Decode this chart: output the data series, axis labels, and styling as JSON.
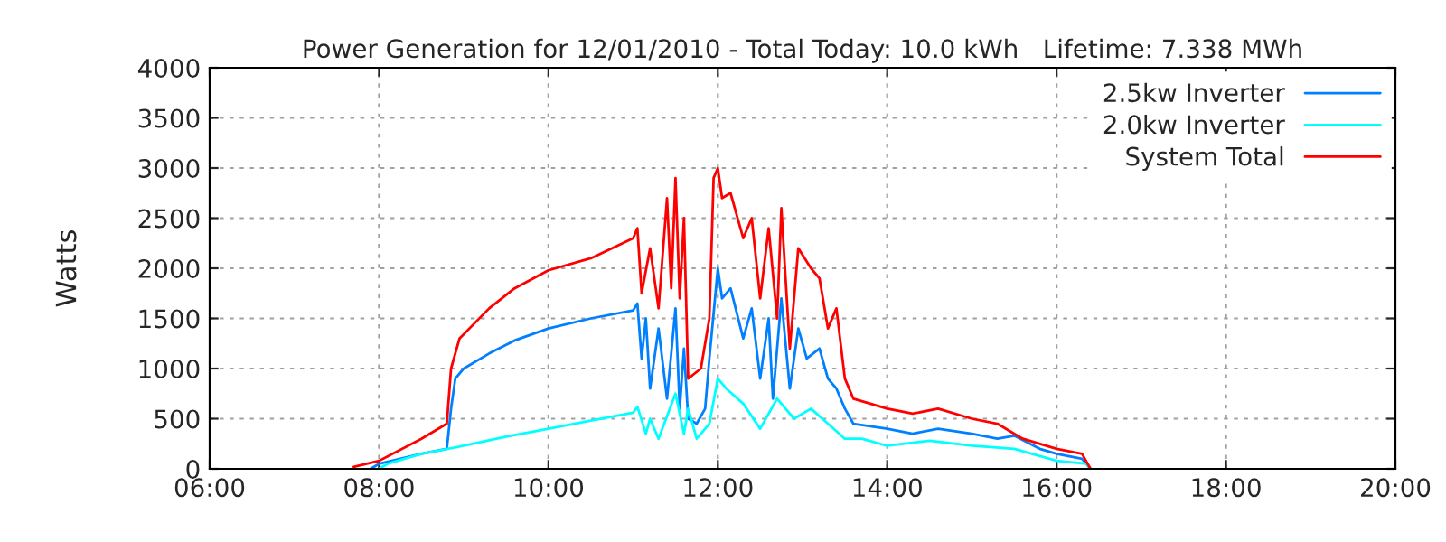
{
  "chart_data": {
    "type": "line",
    "title": "Power Generation for 12/01/2010 - Total Today: 10.0 kWh   Lifetime: 7.338 MWh",
    "ylabel": "Watts",
    "xlim": [
      6,
      20
    ],
    "xticks": [
      {
        "value": 6,
        "label": "06:00"
      },
      {
        "value": 8,
        "label": "08:00"
      },
      {
        "value": 10,
        "label": "10:00"
      },
      {
        "value": 12,
        "label": "12:00"
      },
      {
        "value": 14,
        "label": "14:00"
      },
      {
        "value": 16,
        "label": "16:00"
      },
      {
        "value": 18,
        "label": "18:00"
      },
      {
        "value": 20,
        "label": "20:00"
      }
    ],
    "ylim": [
      0,
      4000
    ],
    "yticks": [
      0,
      500,
      1000,
      1500,
      2000,
      2500,
      3000,
      3500,
      4000
    ],
    "grid": true,
    "legend": "top right",
    "line_style": "solid",
    "series": [
      {
        "name": "2.5kw Inverter",
        "color": "#0080ff",
        "x": [
          7.9,
          8.0,
          8.5,
          8.8,
          8.85,
          8.9,
          9.0,
          9.3,
          9.6,
          10.0,
          10.5,
          11.0,
          11.05,
          11.1,
          11.15,
          11.2,
          11.3,
          11.4,
          11.5,
          11.55,
          11.6,
          11.65,
          11.75,
          11.85,
          11.9,
          12.0,
          12.05,
          12.15,
          12.3,
          12.4,
          12.5,
          12.6,
          12.65,
          12.75,
          12.85,
          12.95,
          13.05,
          13.2,
          13.3,
          13.4,
          13.5,
          13.6,
          14.0,
          14.3,
          14.6,
          15.0,
          15.3,
          15.5,
          15.8,
          16.0,
          16.3,
          16.4
        ],
        "values": [
          0,
          50,
          150,
          200,
          600,
          900,
          1000,
          1150,
          1280,
          1400,
          1500,
          1580,
          1650,
          1100,
          1500,
          800,
          1400,
          700,
          1600,
          600,
          1200,
          500,
          450,
          600,
          1100,
          2000,
          1700,
          1800,
          1300,
          1600,
          900,
          1500,
          700,
          1700,
          800,
          1400,
          1100,
          1200,
          900,
          800,
          600,
          450,
          400,
          350,
          400,
          350,
          300,
          330,
          200,
          150,
          100,
          0
        ]
      },
      {
        "name": "2.0kw Inverter",
        "color": "#00ffff",
        "x": [
          8.0,
          8.1,
          8.5,
          9.0,
          9.5,
          10.0,
          10.5,
          11.0,
          11.05,
          11.15,
          11.2,
          11.3,
          11.5,
          11.6,
          11.65,
          11.75,
          11.9,
          12.0,
          12.1,
          12.3,
          12.5,
          12.7,
          12.9,
          13.1,
          13.3,
          13.5,
          13.7,
          14.0,
          14.5,
          15.0,
          15.5,
          16.0,
          16.35,
          16.4
        ],
        "values": [
          0,
          50,
          150,
          230,
          320,
          400,
          480,
          560,
          620,
          350,
          500,
          300,
          750,
          350,
          600,
          300,
          450,
          900,
          800,
          650,
          400,
          700,
          500,
          600,
          450,
          300,
          300,
          230,
          280,
          230,
          200,
          80,
          50,
          0
        ]
      },
      {
        "name": "System Total",
        "color": "#ff0000",
        "x": [
          7.7,
          8.0,
          8.5,
          8.8,
          8.85,
          8.95,
          9.3,
          9.6,
          10.0,
          10.5,
          11.0,
          11.05,
          11.1,
          11.2,
          11.3,
          11.4,
          11.45,
          11.5,
          11.55,
          11.6,
          11.65,
          11.8,
          11.9,
          11.95,
          12.0,
          12.05,
          12.15,
          12.3,
          12.4,
          12.5,
          12.6,
          12.7,
          12.75,
          12.85,
          12.95,
          13.1,
          13.2,
          13.3,
          13.4,
          13.5,
          13.6,
          14.0,
          14.3,
          14.6,
          15.0,
          15.3,
          15.6,
          16.0,
          16.3,
          16.4
        ],
        "values": [
          20,
          80,
          300,
          450,
          1000,
          1300,
          1600,
          1800,
          1980,
          2100,
          2300,
          2400,
          1750,
          2200,
          1600,
          2700,
          1800,
          2900,
          1700,
          2500,
          900,
          1000,
          1500,
          2900,
          3000,
          2700,
          2750,
          2300,
          2500,
          1700,
          2400,
          1500,
          2600,
          1200,
          2200,
          2000,
          1900,
          1400,
          1600,
          900,
          700,
          600,
          550,
          600,
          500,
          450,
          300,
          200,
          150,
          0
        ]
      }
    ]
  }
}
